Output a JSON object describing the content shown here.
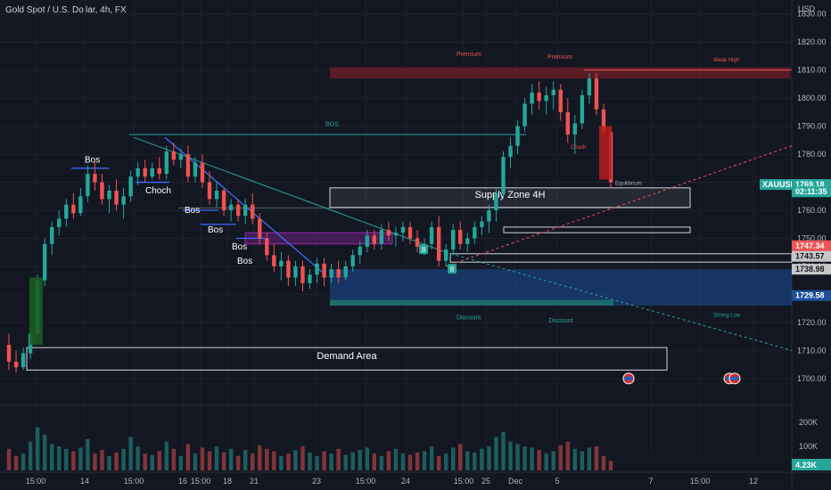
{
  "header": {
    "title": "Gold Spot / U.S. Dollar, 4h, FX",
    "currency": "USD"
  },
  "colors": {
    "background": "#131722",
    "grid": "#1e222d",
    "up": "#26a69a",
    "down": "#ef5350",
    "structure": "#3d6bff",
    "supply": "#ffffff",
    "premium": "#8b1e2c",
    "discount": "#1c4f9a"
  },
  "chart_data": {
    "type": "candlestick",
    "title": "Gold Spot / U.S. Dollar, 4h, FX",
    "ylim": [
      1692,
      1835
    ],
    "y_ticks": [
      "1700.00",
      "1710.00",
      "1720.00",
      "1730.00",
      "1740.00",
      "1750.00",
      "1760.00",
      "1770.00",
      "1780.00",
      "1790.00",
      "1800.00",
      "1810.00",
      "1820.00",
      "1830.00"
    ],
    "x_ticks": [
      "15:00",
      "14",
      "15:00",
      "16",
      "15:00",
      "18",
      "21",
      "23",
      "15:00",
      "24",
      "15:00",
      "25",
      "Dec",
      "5",
      "7",
      "15:00",
      "12"
    ],
    "volume_ticks": [
      "200K",
      "100K"
    ],
    "volume_last": "4.23K",
    "ohlc": [
      [
        1712,
        1716,
        1703,
        1706
      ],
      [
        1706,
        1710,
        1702,
        1704
      ],
      [
        1704,
        1711,
        1703,
        1709
      ],
      [
        1709,
        1718,
        1707,
        1716
      ],
      [
        1716,
        1737,
        1715,
        1735
      ],
      [
        1735,
        1750,
        1733,
        1748
      ],
      [
        1748,
        1756,
        1744,
        1754
      ],
      [
        1754,
        1760,
        1751,
        1757
      ],
      [
        1757,
        1764,
        1754,
        1762
      ],
      [
        1762,
        1766,
        1757,
        1759
      ],
      [
        1759,
        1768,
        1758,
        1765
      ],
      [
        1765,
        1776,
        1763,
        1773
      ],
      [
        1773,
        1777,
        1767,
        1770
      ],
      [
        1770,
        1773,
        1762,
        1764
      ],
      [
        1764,
        1769,
        1759,
        1767
      ],
      [
        1767,
        1771,
        1760,
        1762
      ],
      [
        1762,
        1768,
        1757,
        1765
      ],
      [
        1765,
        1774,
        1763,
        1772
      ],
      [
        1772,
        1777,
        1769,
        1775
      ],
      [
        1775,
        1778,
        1770,
        1772
      ],
      [
        1772,
        1777,
        1771,
        1775
      ],
      [
        1775,
        1779,
        1771,
        1773
      ],
      [
        1773,
        1783,
        1771,
        1781
      ],
      [
        1781,
        1784,
        1776,
        1778
      ],
      [
        1778,
        1782,
        1775,
        1780
      ],
      [
        1780,
        1783,
        1770,
        1772
      ],
      [
        1772,
        1779,
        1770,
        1777
      ],
      [
        1777,
        1780,
        1768,
        1770
      ],
      [
        1770,
        1774,
        1762,
        1764
      ],
      [
        1764,
        1770,
        1761,
        1767
      ],
      [
        1767,
        1768,
        1758,
        1760
      ],
      [
        1760,
        1764,
        1756,
        1762
      ],
      [
        1762,
        1764,
        1756,
        1758
      ],
      [
        1758,
        1764,
        1755,
        1762
      ],
      [
        1762,
        1766,
        1755,
        1757
      ],
      [
        1757,
        1759,
        1748,
        1750
      ],
      [
        1750,
        1752,
        1742,
        1744
      ],
      [
        1744,
        1748,
        1738,
        1740
      ],
      [
        1740,
        1745,
        1735,
        1742
      ],
      [
        1742,
        1744,
        1733,
        1736
      ],
      [
        1736,
        1742,
        1733,
        1740
      ],
      [
        1740,
        1742,
        1731,
        1734
      ],
      [
        1734,
        1739,
        1732,
        1737
      ],
      [
        1737,
        1743,
        1734,
        1741
      ],
      [
        1741,
        1743,
        1733,
        1736
      ],
      [
        1736,
        1741,
        1734,
        1739
      ],
      [
        1739,
        1742,
        1734,
        1736
      ],
      [
        1736,
        1742,
        1735,
        1740
      ],
      [
        1740,
        1746,
        1738,
        1744
      ],
      [
        1744,
        1749,
        1741,
        1747
      ],
      [
        1747,
        1753,
        1745,
        1751
      ],
      [
        1751,
        1753,
        1746,
        1748
      ],
      [
        1748,
        1755,
        1746,
        1753
      ],
      [
        1753,
        1756,
        1749,
        1751
      ],
      [
        1751,
        1754,
        1747,
        1752
      ],
      [
        1752,
        1756,
        1749,
        1754
      ],
      [
        1754,
        1756,
        1748,
        1750
      ],
      [
        1750,
        1753,
        1745,
        1747
      ],
      [
        1747,
        1750,
        1744,
        1748
      ],
      [
        1748,
        1756,
        1746,
        1754
      ],
      [
        1754,
        1758,
        1740,
        1742
      ],
      [
        1742,
        1748,
        1740,
        1746
      ],
      [
        1746,
        1755,
        1744,
        1753
      ],
      [
        1753,
        1756,
        1746,
        1748
      ],
      [
        1748,
        1752,
        1745,
        1750
      ],
      [
        1750,
        1756,
        1748,
        1754
      ],
      [
        1754,
        1758,
        1751,
        1756
      ],
      [
        1756,
        1762,
        1752,
        1760
      ],
      [
        1760,
        1768,
        1756,
        1766
      ],
      [
        1766,
        1781,
        1764,
        1779
      ],
      [
        1779,
        1786,
        1775,
        1783
      ],
      [
        1783,
        1792,
        1780,
        1790
      ],
      [
        1790,
        1800,
        1788,
        1798
      ],
      [
        1798,
        1805,
        1794,
        1802
      ],
      [
        1802,
        1806,
        1796,
        1799
      ],
      [
        1799,
        1804,
        1794,
        1801
      ],
      [
        1801,
        1806,
        1796,
        1803
      ],
      [
        1803,
        1805,
        1792,
        1795
      ],
      [
        1795,
        1800,
        1784,
        1787
      ],
      [
        1787,
        1794,
        1780,
        1791
      ],
      [
        1791,
        1803,
        1789,
        1801
      ],
      [
        1801,
        1809,
        1798,
        1807
      ],
      [
        1807,
        1809,
        1794,
        1796
      ],
      [
        1796,
        1798,
        1786,
        1788
      ],
      [
        1788,
        1790,
        1768,
        1770
      ]
    ],
    "volume": [
      90,
      60,
      70,
      120,
      180,
      150,
      110,
      100,
      90,
      80,
      95,
      130,
      70,
      85,
      60,
      75,
      90,
      140,
      100,
      70,
      65,
      80,
      120,
      90,
      60,
      110,
      70,
      95,
      80,
      100,
      75,
      90,
      60,
      85,
      70,
      105,
      90,
      80,
      60,
      70,
      85,
      100,
      75,
      60,
      80,
      70,
      90,
      65,
      75,
      85,
      95,
      70,
      60,
      80,
      90,
      70,
      65,
      75,
      80,
      100,
      60,
      70,
      95,
      110,
      80,
      75,
      90,
      100,
      140,
      160,
      120,
      110,
      100,
      95,
      85,
      70,
      80,
      105,
      120,
      90,
      80,
      95,
      100,
      60,
      40
    ],
    "zones": [
      {
        "label": "Demand Area",
        "low": 1703,
        "high": 1711
      },
      {
        "label": "Supply Zone 4H",
        "low": 1761,
        "high": 1768
      },
      {
        "label": "Premium",
        "low": 1807,
        "high": 1811
      },
      {
        "label": "Discount",
        "low": 1726,
        "high": 1739
      }
    ],
    "annotations": [
      "Bos",
      "Choch",
      "Bos",
      "Bos",
      "Bos",
      "Bos",
      "BOS",
      "Premium",
      "Discount",
      "Weak High",
      "Strong Low",
      "Equilibrium",
      "Choch"
    ],
    "price_labels": [
      {
        "text": "XAUUSD",
        "value": 1769.18,
        "color": "#26a69a"
      },
      {
        "text": "1769.18",
        "value": 1769.18,
        "color": "#26a69a"
      },
      {
        "text": "02:11:35",
        "value": 1766.6,
        "color": "#26a69a"
      },
      {
        "text": "1747.34",
        "value": 1747.34,
        "color": "#ef5350"
      },
      {
        "text": "1743.57",
        "value": 1743.57,
        "color": "#c7c7c7"
      },
      {
        "text": "1738.98",
        "value": 1738.98,
        "color": "#c7c7c7"
      },
      {
        "text": "1729.58",
        "value": 1729.58,
        "color": "#1c4f9a"
      }
    ],
    "badges": [
      "8",
      "8"
    ]
  }
}
